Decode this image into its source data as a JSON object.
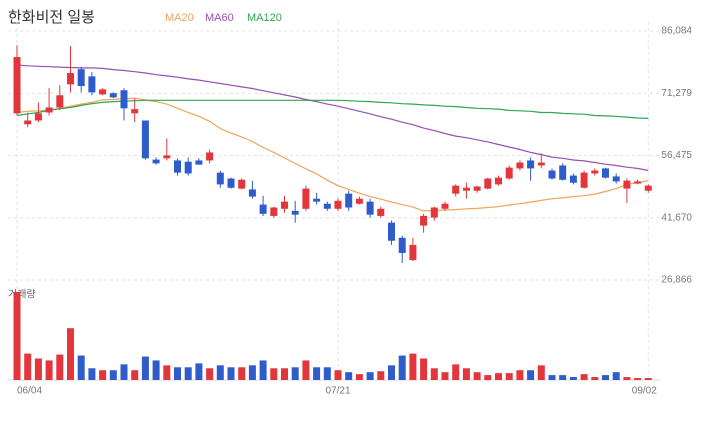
{
  "chart_data": {
    "type": "candlestick",
    "title": "한화비전 일봉",
    "categories": [
      "06/04",
      null,
      null,
      null,
      null,
      null,
      null,
      null,
      null,
      null,
      null,
      null,
      null,
      null,
      null,
      null,
      null,
      null,
      null,
      null,
      null,
      null,
      null,
      null,
      null,
      null,
      null,
      null,
      null,
      null,
      "07/21",
      null,
      null,
      null,
      null,
      null,
      null,
      null,
      null,
      null,
      null,
      null,
      null,
      null,
      null,
      null,
      null,
      null,
      null,
      null,
      null,
      null,
      null,
      null,
      null,
      null,
      null,
      null,
      null,
      "09/02"
    ],
    "open": [
      66500,
      63900,
      64800,
      66700,
      67900,
      73400,
      77000,
      75300,
      71000,
      71300,
      72000,
      66500,
      64800,
      55500,
      55800,
      55300,
      55000,
      55300,
      55300,
      52400,
      51000,
      48600,
      48400,
      44800,
      42100,
      43800,
      43300,
      43800,
      46200,
      45000,
      43800,
      47400,
      45000,
      45500,
      42100,
      40500,
      36900,
      31600,
      39800,
      41700,
      43800,
      47400,
      48100,
      48100,
      48600,
      49600,
      51000,
      53400,
      55300,
      54100,
      52900,
      54100,
      51700,
      48800,
      52200,
      53400,
      51500,
      48600,
      49800,
      48100
    ],
    "high": [
      82700,
      66700,
      69100,
      72500,
      73200,
      82500,
      77500,
      76300,
      72500,
      71500,
      72500,
      70100,
      64800,
      56000,
      60500,
      55800,
      56000,
      55800,
      57900,
      52900,
      51200,
      51000,
      50500,
      46900,
      44300,
      46900,
      45700,
      49300,
      47600,
      45500,
      46200,
      48100,
      46700,
      46200,
      44300,
      41000,
      37400,
      36900,
      42600,
      44300,
      45500,
      49600,
      50000,
      49300,
      51200,
      51700,
      54100,
      55300,
      56000,
      57000,
      53400,
      54600,
      52200,
      52900,
      53400,
      53600,
      52200,
      51000,
      50700,
      49600
    ],
    "low": [
      66000,
      63200,
      64400,
      66000,
      67200,
      71500,
      71500,
      70800,
      70800,
      70100,
      64800,
      64400,
      55500,
      54300,
      55300,
      51700,
      51700,
      54300,
      54600,
      48800,
      48600,
      48400,
      46200,
      42100,
      41700,
      42900,
      40500,
      43300,
      44800,
      43300,
      43300,
      43300,
      44800,
      41700,
      41700,
      35200,
      30900,
      31400,
      38100,
      41000,
      43300,
      46700,
      46200,
      47600,
      48400,
      49300,
      50700,
      52900,
      50500,
      53400,
      50700,
      50500,
      49600,
      48600,
      51700,
      51000,
      49800,
      45200,
      49600,
      47600
    ],
    "close": [
      79900,
      64800,
      66500,
      67900,
      70800,
      76100,
      73000,
      71500,
      72200,
      70300,
      67700,
      67500,
      55800,
      54600,
      56500,
      52400,
      52200,
      54300,
      57200,
      49600,
      48800,
      50700,
      46700,
      42600,
      44100,
      45500,
      42400,
      48600,
      45500,
      43800,
      45700,
      44100,
      46200,
      42400,
      43800,
      36200,
      33300,
      35200,
      42100,
      44100,
      45000,
      49300,
      48800,
      49100,
      51000,
      51200,
      53600,
      54800,
      53400,
      54800,
      51000,
      50700,
      50000,
      52400,
      52900,
      51200,
      50300,
      50500,
      50300,
      49300
    ],
    "up_color": "#e2363c",
    "down_color": "#2f5ccb",
    "series": [
      {
        "name": "MA20",
        "color": "#efa45a",
        "values": [
          66700,
          67000,
          67100,
          67300,
          67700,
          68200,
          68700,
          69100,
          69700,
          69800,
          70000,
          70100,
          69700,
          69300,
          68700,
          67700,
          66700,
          65800,
          64600,
          62900,
          61800,
          60900,
          59800,
          58400,
          57200,
          55900,
          54600,
          53300,
          52100,
          50600,
          49300,
          48400,
          47500,
          46700,
          46100,
          45400,
          44800,
          44200,
          43300,
          43400,
          43500,
          43600,
          43800,
          43900,
          44100,
          44300,
          44700,
          45000,
          45400,
          45800,
          46200,
          46400,
          46700,
          46900,
          47300,
          47900,
          48600,
          49600,
          50000,
          50500
        ]
      },
      {
        "name": "MA60",
        "color": "#9a4eb4",
        "values": [
          78000,
          77800,
          77700,
          77600,
          77500,
          77400,
          77300,
          77300,
          77200,
          76900,
          76700,
          76400,
          76100,
          75700,
          75400,
          75100,
          74700,
          74400,
          74000,
          73600,
          73200,
          72800,
          72400,
          71900,
          71400,
          70900,
          70400,
          69800,
          69300,
          68700,
          68200,
          67600,
          67000,
          66400,
          65700,
          65100,
          64400,
          63800,
          63000,
          62400,
          61700,
          61100,
          60700,
          60200,
          59700,
          59100,
          58500,
          57900,
          57200,
          56700,
          56100,
          55800,
          55400,
          55200,
          54800,
          54400,
          54100,
          53700,
          53400,
          52900
        ]
      },
      {
        "name": "MA120",
        "color": "#30a552",
        "values": [
          66000,
          66400,
          66700,
          67200,
          67600,
          67900,
          68400,
          68800,
          69100,
          69300,
          69400,
          69500,
          69600,
          69600,
          69600,
          69600,
          69600,
          69600,
          69600,
          69600,
          69600,
          69600,
          69600,
          69600,
          69600,
          69600,
          69600,
          69600,
          69600,
          69600,
          69600,
          69500,
          69400,
          69300,
          69100,
          69000,
          68800,
          68700,
          68500,
          68400,
          68200,
          68100,
          67900,
          67700,
          67600,
          67500,
          67200,
          67100,
          67000,
          66700,
          66700,
          66500,
          66400,
          66300,
          66000,
          65900,
          65800,
          65600,
          65400,
          65300
        ]
      }
    ],
    "volume": {
      "label": "거래량",
      "values": [
        90,
        27,
        22,
        20,
        26,
        53,
        25,
        12,
        10,
        10,
        16,
        10,
        24,
        20,
        15,
        13,
        13,
        17,
        12,
        15,
        13,
        13,
        15,
        20,
        12,
        12,
        13,
        20,
        13,
        13,
        10,
        8,
        6,
        8,
        9,
        15,
        25,
        27,
        22,
        12,
        8,
        16,
        12,
        8,
        5,
        7,
        7,
        10,
        10,
        15,
        5,
        5,
        3,
        6,
        3,
        5,
        8,
        3,
        2,
        2
      ]
    },
    "ylim": [
      25670,
      88230
    ],
    "yticks": [
      {
        "value": 26866,
        "label": "26,866"
      },
      {
        "value": 41670,
        "label": "41,670"
      },
      {
        "value": 56475,
        "label": "56,475"
      },
      {
        "value": 71279,
        "label": "71,279"
      },
      {
        "value": 86084,
        "label": "86,084"
      }
    ],
    "grid": true
  }
}
